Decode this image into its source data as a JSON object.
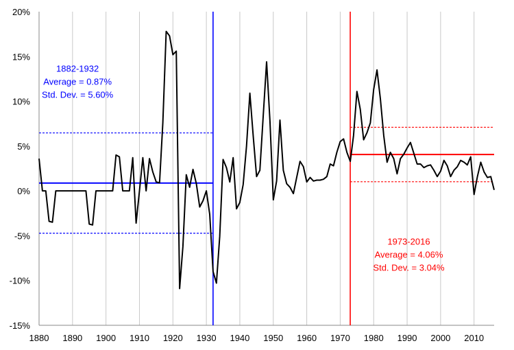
{
  "chart_data": {
    "type": "line",
    "title": "",
    "xlabel": "",
    "ylabel": "",
    "xlim": [
      1880,
      2016
    ],
    "ylim": [
      -15,
      20
    ],
    "x_ticks": [
      1880,
      1890,
      1900,
      1910,
      1920,
      1930,
      1940,
      1950,
      1960,
      1970,
      1980,
      1990,
      2000,
      2010
    ],
    "y_ticks": [
      {
        "value": -15,
        "label": "-15%"
      },
      {
        "value": -10,
        "label": "-10%"
      },
      {
        "value": -5,
        "label": "-5%"
      },
      {
        "value": 0,
        "label": "0%"
      },
      {
        "value": 5,
        "label": "5%"
      },
      {
        "value": 10,
        "label": "10%"
      },
      {
        "value": 15,
        "label": "15%"
      },
      {
        "value": 20,
        "label": "20%"
      }
    ],
    "grid": {
      "vertical": true,
      "horizontal": false
    },
    "series": [
      {
        "color": "#000000",
        "points": [
          [
            1880,
            3.6
          ],
          [
            1881,
            0.0
          ],
          [
            1882,
            0.0
          ],
          [
            1883,
            -3.4
          ],
          [
            1884,
            -3.5
          ],
          [
            1885,
            0.0
          ],
          [
            1886,
            0.0
          ],
          [
            1887,
            0.0
          ],
          [
            1888,
            0.0
          ],
          [
            1889,
            0.0
          ],
          [
            1890,
            0.0
          ],
          [
            1891,
            0.0
          ],
          [
            1892,
            0.0
          ],
          [
            1893,
            0.0
          ],
          [
            1894,
            0.0
          ],
          [
            1895,
            -3.7
          ],
          [
            1896,
            -3.8
          ],
          [
            1897,
            0.0
          ],
          [
            1898,
            0.0
          ],
          [
            1899,
            0.0
          ],
          [
            1900,
            0.0
          ],
          [
            1901,
            0.0
          ],
          [
            1902,
            0.0
          ],
          [
            1903,
            4.0
          ],
          [
            1904,
            3.8
          ],
          [
            1905,
            0.0
          ],
          [
            1906,
            0.0
          ],
          [
            1907,
            0.0
          ],
          [
            1908,
            3.7
          ],
          [
            1909,
            -3.6
          ],
          [
            1910,
            0.0
          ],
          [
            1911,
            3.7
          ],
          [
            1912,
            0.0
          ],
          [
            1913,
            3.6
          ],
          [
            1914,
            2.1
          ],
          [
            1915,
            1.0
          ],
          [
            1916,
            0.9
          ],
          [
            1917,
            7.6
          ],
          [
            1918,
            17.8
          ],
          [
            1919,
            17.3
          ],
          [
            1920,
            15.2
          ],
          [
            1921,
            15.6
          ],
          [
            1922,
            -10.9
          ],
          [
            1923,
            -6.2
          ],
          [
            1924,
            1.8
          ],
          [
            1925,
            0.4
          ],
          [
            1926,
            2.4
          ],
          [
            1927,
            0.8
          ],
          [
            1928,
            -1.8
          ],
          [
            1929,
            -1.1
          ],
          [
            1930,
            0.0
          ],
          [
            1931,
            -2.6
          ],
          [
            1932,
            -9.0
          ],
          [
            1933,
            -10.3
          ],
          [
            1934,
            -5.1
          ],
          [
            1935,
            3.5
          ],
          [
            1936,
            2.6
          ],
          [
            1937,
            1.0
          ],
          [
            1938,
            3.7
          ],
          [
            1939,
            -2.0
          ],
          [
            1940,
            -1.3
          ],
          [
            1941,
            0.7
          ],
          [
            1942,
            5.0
          ],
          [
            1943,
            10.9
          ],
          [
            1944,
            6.1
          ],
          [
            1945,
            1.6
          ],
          [
            1946,
            2.3
          ],
          [
            1947,
            8.4
          ],
          [
            1948,
            14.4
          ],
          [
            1949,
            7.8
          ],
          [
            1950,
            -1.0
          ],
          [
            1951,
            1.1
          ],
          [
            1952,
            7.9
          ],
          [
            1953,
            2.3
          ],
          [
            1954,
            0.8
          ],
          [
            1955,
            0.4
          ],
          [
            1956,
            -0.3
          ],
          [
            1957,
            1.5
          ],
          [
            1958,
            3.3
          ],
          [
            1959,
            2.7
          ],
          [
            1960,
            1.0
          ],
          [
            1961,
            1.5
          ],
          [
            1962,
            1.1
          ],
          [
            1963,
            1.2
          ],
          [
            1964,
            1.2
          ],
          [
            1965,
            1.3
          ],
          [
            1966,
            1.6
          ],
          [
            1967,
            3.0
          ],
          [
            1968,
            2.8
          ],
          [
            1969,
            4.3
          ],
          [
            1970,
            5.5
          ],
          [
            1971,
            5.8
          ],
          [
            1972,
            4.3
          ],
          [
            1973,
            3.3
          ],
          [
            1974,
            6.2
          ],
          [
            1975,
            11.1
          ],
          [
            1976,
            9.1
          ],
          [
            1977,
            5.7
          ],
          [
            1978,
            6.5
          ],
          [
            1979,
            7.6
          ],
          [
            1980,
            11.3
          ],
          [
            1981,
            13.5
          ],
          [
            1982,
            10.3
          ],
          [
            1983,
            6.2
          ],
          [
            1984,
            3.2
          ],
          [
            1985,
            4.3
          ],
          [
            1986,
            3.6
          ],
          [
            1987,
            1.9
          ],
          [
            1988,
            3.6
          ],
          [
            1989,
            4.1
          ],
          [
            1990,
            4.8
          ],
          [
            1991,
            5.4
          ],
          [
            1992,
            4.2
          ],
          [
            1993,
            3.0
          ],
          [
            1994,
            3.0
          ],
          [
            1995,
            2.6
          ],
          [
            1996,
            2.8
          ],
          [
            1997,
            2.9
          ],
          [
            1998,
            2.3
          ],
          [
            1999,
            1.6
          ],
          [
            2000,
            2.2
          ],
          [
            2001,
            3.4
          ],
          [
            2002,
            2.8
          ],
          [
            2003,
            1.6
          ],
          [
            2004,
            2.3
          ],
          [
            2005,
            2.7
          ],
          [
            2006,
            3.4
          ],
          [
            2007,
            3.2
          ],
          [
            2008,
            2.9
          ],
          [
            2009,
            3.8
          ],
          [
            2010,
            -0.4
          ],
          [
            2011,
            1.6
          ],
          [
            2012,
            3.2
          ],
          [
            2013,
            2.1
          ],
          [
            2014,
            1.5
          ],
          [
            2015,
            1.6
          ],
          [
            2016,
            0.1
          ]
        ]
      }
    ],
    "vlines": [
      {
        "x": 1932,
        "color": "#0000ff"
      },
      {
        "x": 1973,
        "color": "#ff0000"
      }
    ],
    "hlines": [
      {
        "x_from": 1880,
        "x_to": 1932,
        "y": 0.87,
        "color": "#0000ff",
        "style": "solid"
      },
      {
        "x_from": 1880,
        "x_to": 1932,
        "y": 6.47,
        "color": "#0000ff",
        "style": "dashed"
      },
      {
        "x_from": 1880,
        "x_to": 1932,
        "y": -4.73,
        "color": "#0000ff",
        "style": "dashed"
      },
      {
        "x_from": 1973,
        "x_to": 2016,
        "y": 4.06,
        "color": "#ff0000",
        "style": "solid"
      },
      {
        "x_from": 1973,
        "x_to": 2016,
        "y": 7.1,
        "color": "#ff0000",
        "style": "dashed"
      },
      {
        "x_from": 1973,
        "x_to": 2016,
        "y": 1.02,
        "color": "#ff0000",
        "style": "dashed"
      }
    ],
    "annotations": [
      {
        "color": "#0000ff",
        "anchor_x": 1891.5,
        "anchor_y": 13.3,
        "lines": [
          "1882-1932",
          "Average = 0.87%",
          "Std. Dev. = 5.60%"
        ]
      },
      {
        "color": "#ff0000",
        "anchor_x": 1990.5,
        "anchor_y": -6.0,
        "lines": [
          "1973-2016",
          "Average = 4.06%",
          "Std. Dev. = 3.04%"
        ]
      }
    ]
  }
}
